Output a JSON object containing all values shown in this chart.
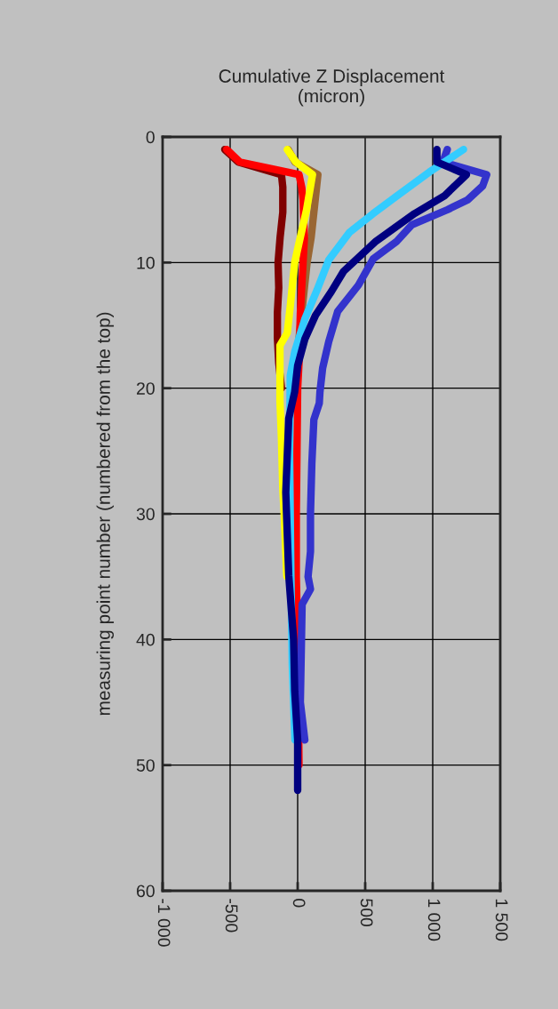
{
  "chart_data": {
    "type": "line",
    "title": "Cumulative Z Displacement\n(micron)",
    "ylabel": "measuring point number (numbered from the top)",
    "xlim": [
      -1000,
      1500
    ],
    "xticks": [
      {
        "value": -1000,
        "label": "-1 000"
      },
      -500,
      0,
      500,
      {
        "value": 1000,
        "label": "1 000"
      },
      {
        "value": 1500,
        "label": "1 500"
      }
    ],
    "ylim": [
      60,
      0
    ],
    "yticks": [
      0,
      10,
      20,
      30,
      40,
      50,
      60
    ],
    "grid": true,
    "legend": false,
    "marker": "none",
    "line_style": "solid",
    "series": [
      {
        "color": "#800000",
        "x": [
          -540,
          -440,
          -120,
          -110,
          -110,
          -130,
          -145,
          -140,
          -150,
          -150,
          -140,
          -120
        ],
        "values": [
          1,
          2,
          3,
          4,
          6,
          8,
          10,
          12,
          14,
          16,
          18,
          20
        ]
      },
      {
        "color": "#996633",
        "x": [
          -70,
          -20,
          150,
          140,
          120,
          100,
          70,
          50,
          30,
          10
        ],
        "values": [
          1,
          2,
          3,
          4,
          6,
          8,
          10,
          12,
          14,
          16
        ]
      },
      {
        "color": "#ff0000",
        "x": [
          -526,
          -428,
          10,
          30,
          40,
          50,
          40,
          20,
          10,
          0,
          -5,
          -10,
          -10,
          0,
          10
        ],
        "values": [
          1,
          2,
          3,
          4,
          5,
          8,
          10,
          14,
          18,
          20,
          25,
          30,
          35,
          40,
          50
        ]
      },
      {
        "color": "#ffff00",
        "x": [
          -77,
          -13,
          110,
          66,
          11,
          -22,
          -55,
          -77,
          -131,
          -131,
          -131,
          -120,
          -110,
          -100,
          -80
        ],
        "values": [
          1,
          2,
          3,
          5.8,
          8.4,
          10,
          13.5,
          15.6,
          16.6,
          19,
          21,
          24,
          28,
          30,
          35
        ]
      },
      {
        "color": "#3333cc",
        "x": [
          1108,
          1075,
          1400,
          1370,
          1260,
          1108,
          845,
          735,
          560,
          450,
          296,
          230,
          185,
          165,
          160,
          120,
          105,
          95,
          95,
          77,
          95,
          33,
          20,
          53
        ],
        "values": [
          1,
          2,
          3,
          3.9,
          5,
          5.8,
          7,
          8.3,
          9.7,
          11.8,
          13.9,
          16.3,
          18.4,
          20.3,
          21.2,
          22.5,
          26,
          30,
          33,
          35,
          36,
          37.2,
          45,
          48
        ]
      },
      {
        "color": "#33ccff",
        "x": [
          1228,
          975,
          735,
          560,
          383,
          230,
          143,
          53,
          -22,
          -55,
          -60,
          -50,
          -40,
          -20
        ],
        "values": [
          1,
          2.8,
          4.7,
          6.1,
          7.6,
          9.8,
          12.2,
          14.5,
          17.1,
          19,
          25,
          35,
          42,
          48
        ]
      },
      {
        "color": "#000080",
        "x": [
          1031,
          1031,
          1250,
          1086,
          866,
          580,
          340,
          250,
          132,
          53,
          0,
          -22,
          -66,
          -88,
          -66,
          -30,
          -22,
          0,
          0
        ],
        "values": [
          1,
          2,
          3,
          4.7,
          6.1,
          8.3,
          10.7,
          12.3,
          14.2,
          16.1,
          18.2,
          20.3,
          22.4,
          28.3,
          34.9,
          40,
          44.1,
          48,
          52
        ]
      }
    ]
  }
}
